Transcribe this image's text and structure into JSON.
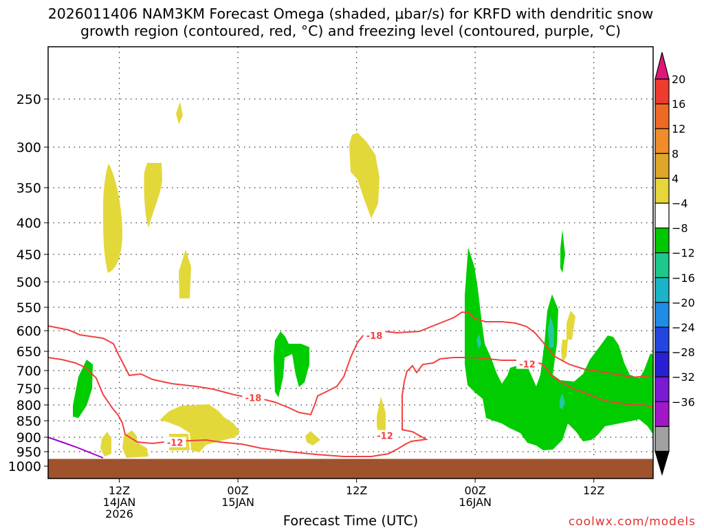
{
  "chart_data": {
    "type": "heatmap",
    "title_line1": "2026011406 NAM3KM Forecast Omega (shaded, μbar/s) for KRFD with dendritic snow",
    "title_line2": "growth region (contoured, red, °C) and freezing level (contoured, purple, °C)",
    "xlabel": "Forecast Time (UTC)",
    "credit": "coolwx.com/models",
    "x_range_hours": [
      6,
      57
    ],
    "x_ticks": [
      {
        "hour": 12,
        "line1": "12Z",
        "line2": "14JAN",
        "line3": "2026"
      },
      {
        "hour": 22,
        "line1": "00Z",
        "line2": "15JAN",
        "line3": ""
      },
      {
        "hour": 32,
        "line1": "12Z",
        "line2": "",
        "line3": ""
      },
      {
        "hour": 42,
        "line1": "00Z",
        "line2": "16JAN",
        "line3": ""
      },
      {
        "hour": 52,
        "line1": "12Z",
        "line2": "",
        "line3": ""
      }
    ],
    "y_ticks_hpa": [
      "250",
      "300",
      "350",
      "400",
      "450",
      "500",
      "550",
      "600",
      "650",
      "700",
      "750",
      "800",
      "850",
      "900",
      "950",
      "1000"
    ],
    "ground_level_hpa": 975,
    "contour_labels": [
      {
        "text": "-18",
        "hour": 33.5,
        "hpa": 612
      },
      {
        "text": "-18",
        "hour": 23.3,
        "hpa": 778
      },
      {
        "text": "-12",
        "hour": 16.7,
        "hpa": 918
      },
      {
        "text": "-12",
        "hour": 34.4,
        "hpa": 895
      },
      {
        "text": "-12",
        "hour": 46.4,
        "hpa": 683
      }
    ],
    "colorbar": {
      "labels": [
        "20",
        "16",
        "12",
        "8",
        "4",
        "−4",
        "−8",
        "−12",
        "−16",
        "−20",
        "−24",
        "−28",
        "−32",
        "−36"
      ],
      "colors_top_to_bottom": [
        "#e0157a",
        "#ee3b2e",
        "#ee6a24",
        "#f08c2a",
        "#e0a62a",
        "#e6d63a",
        "#ffffff",
        "#00c800",
        "#1dc88a",
        "#1ab4c8",
        "#1f8ce6",
        "#2346e0",
        "#2a1fd2",
        "#7a1ad2",
        "#a018c8",
        "#a0a0a0",
        "#000000"
      ]
    },
    "shading_colors": {
      "yellow": "#e3d83a",
      "green": "#00cc00",
      "teal": "#22c8a0",
      "ground": "#a0522d",
      "dgz": "#f24040",
      "freezing": "#a000c8"
    }
  }
}
